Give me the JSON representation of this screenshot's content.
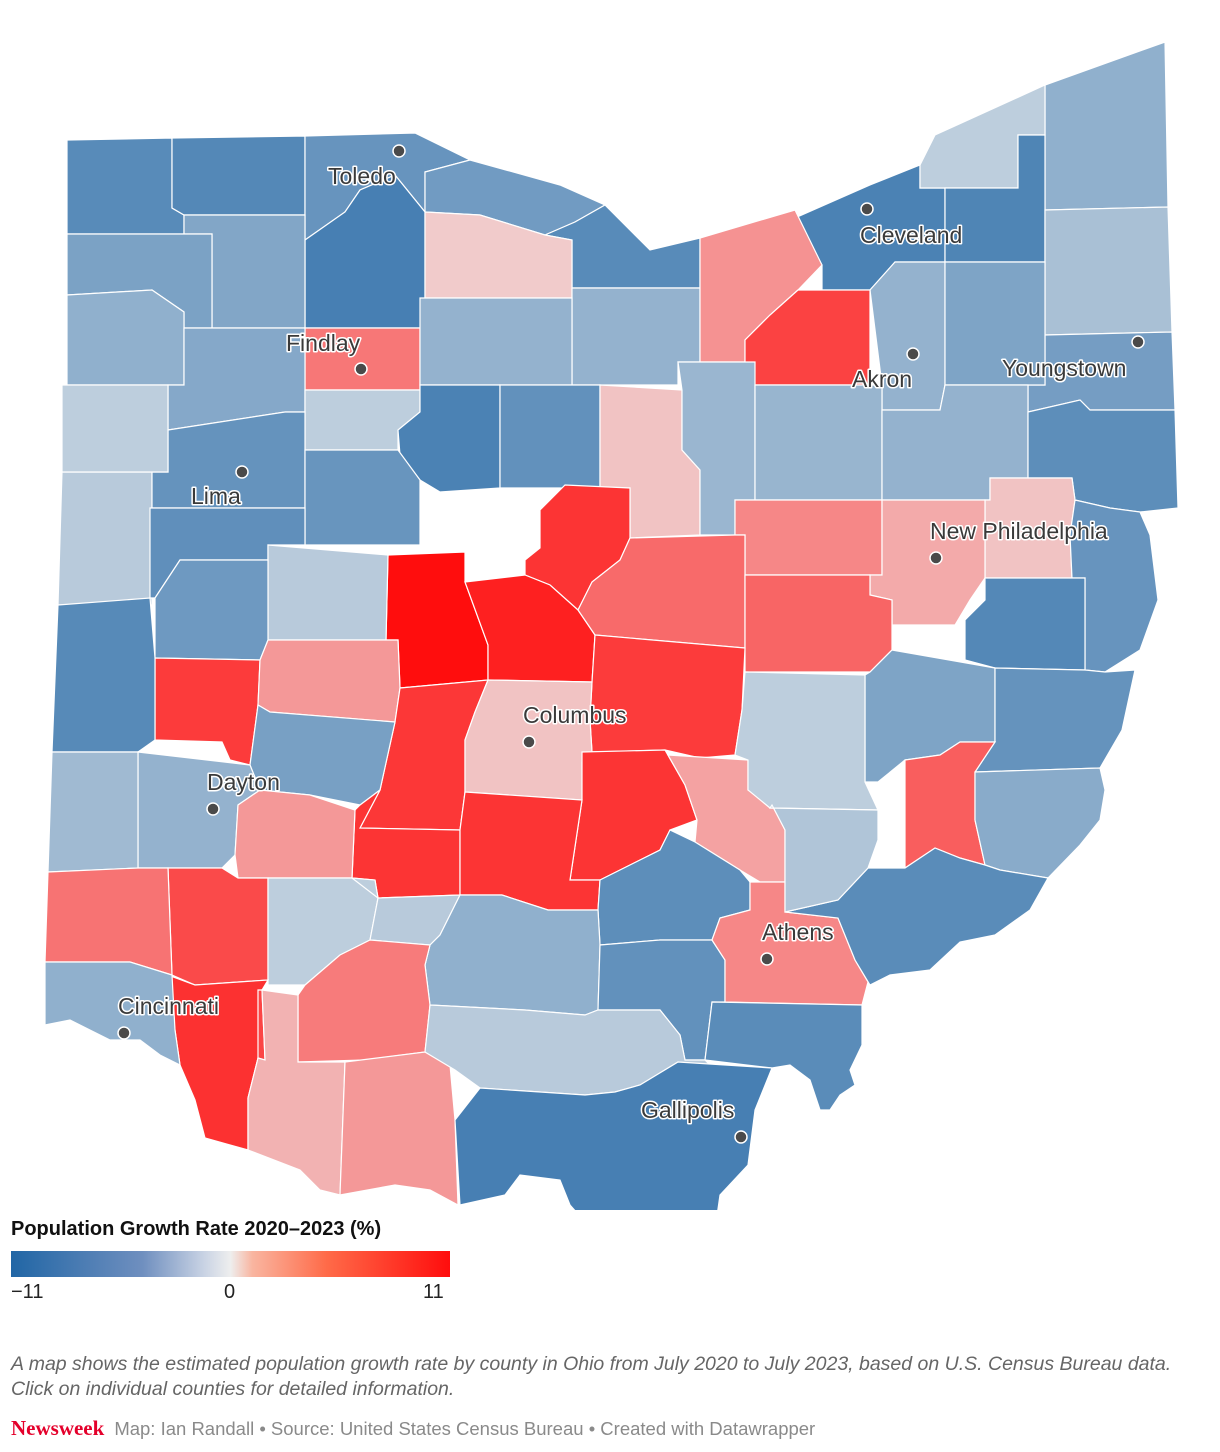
{
  "colors": {
    "negative_max": "#2166a5",
    "neutral": "#eeeeee",
    "positive_max": "#ff0d0d"
  },
  "legend": {
    "title": "Population Growth Rate 2020–2023 (%)",
    "min_label": "−11",
    "mid_label": "0",
    "max_label": "11",
    "min_value": -11,
    "max_value": 11
  },
  "cities": [
    {
      "name": "Toledo"
    },
    {
      "name": "Cleveland"
    },
    {
      "name": "Findlay"
    },
    {
      "name": "Akron"
    },
    {
      "name": "Youngstown"
    },
    {
      "name": "Lima"
    },
    {
      "name": "New Philadelphia"
    },
    {
      "name": "Columbus"
    },
    {
      "name": "Dayton"
    },
    {
      "name": "Athens"
    },
    {
      "name": "Cincinnati"
    },
    {
      "name": "Gallipolis"
    }
  ],
  "counties": [
    {
      "id": "c0",
      "rate": -6.5
    },
    {
      "id": "c1",
      "rate": -6.8
    },
    {
      "id": "c2",
      "rate": -5.5
    },
    {
      "id": "c3",
      "rate": -4.8
    },
    {
      "id": "c4",
      "rate": -6.5
    },
    {
      "id": "c5",
      "rate": -7.5
    },
    {
      "id": "c6",
      "rate": -3.0
    },
    {
      "id": "c7",
      "rate": -1.0
    },
    {
      "id": "c8",
      "rate": -7.2
    },
    {
      "id": "c9",
      "rate": -7.8
    },
    {
      "id": "c10",
      "rate": -3.8
    },
    {
      "id": "c11",
      "rate": -4.2
    },
    {
      "id": "c12",
      "rate": 0.5
    },
    {
      "id": "c13",
      "rate": -2.8
    },
    {
      "id": "c14",
      "rate": 2.5
    },
    {
      "id": "c15",
      "rate": -1.8
    },
    {
      "id": "c16",
      "rate": -4.6
    },
    {
      "id": "c17",
      "rate": -2.8
    },
    {
      "id": "c18",
      "rate": 7.0
    },
    {
      "id": "c19",
      "rate": -4.0
    },
    {
      "id": "c20",
      "rate": 3.8
    },
    {
      "id": "c21",
      "rate": -3.0
    },
    {
      "id": "c22",
      "rate": -3.6
    },
    {
      "id": "c23",
      "rate": -2.8
    },
    {
      "id": "c24",
      "rate": -1.0
    },
    {
      "id": "c25",
      "rate": -7.5
    },
    {
      "id": "c26",
      "rate": -5.8
    },
    {
      "id": "c27",
      "rate": 0.7
    },
    {
      "id": "c28",
      "rate": -2.5
    },
    {
      "id": "c29",
      "rate": -2.6
    },
    {
      "id": "c30",
      "rate": -2.8
    },
    {
      "id": "c31",
      "rate": -6.2
    },
    {
      "id": "c32",
      "rate": -1.2
    },
    {
      "id": "c33",
      "rate": -5.6
    },
    {
      "id": "c34",
      "rate": -1.0
    },
    {
      "id": "c35",
      "rate": -5.4
    },
    {
      "id": "c36",
      "rate": 8.0
    },
    {
      "id": "c37",
      "rate": 0.7
    },
    {
      "id": "c38",
      "rate": 3.0
    },
    {
      "id": "c39",
      "rate": 1.5
    },
    {
      "id": "c40",
      "rate": -5.5
    },
    {
      "id": "c41",
      "rate": -6.0
    },
    {
      "id": "c42",
      "rate": 11.0
    },
    {
      "id": "c43",
      "rate": 9.5
    },
    {
      "id": "c44",
      "rate": -1.2
    },
    {
      "id": "c45",
      "rate": 4.5
    },
    {
      "id": "c46",
      "rate": 4.8
    },
    {
      "id": "c47",
      "rate": -6.8
    },
    {
      "id": "c48",
      "rate": -5.0
    },
    {
      "id": "c49",
      "rate": 7.5
    },
    {
      "id": "c50",
      "rate": 2.2
    },
    {
      "id": "c51",
      "rate": 7.5
    },
    {
      "id": "c52",
      "rate": -6.6
    },
    {
      "id": "c53",
      "rate": -4.0
    },
    {
      "id": "c54",
      "rate": 7.8
    },
    {
      "id": "c55",
      "rate": 0.7
    },
    {
      "id": "c56",
      "rate": 8.0
    },
    {
      "id": "c57",
      "rate": 1.8
    },
    {
      "id": "c58",
      "rate": -1.0
    },
    {
      "id": "c59",
      "rate": -4.4
    },
    {
      "id": "c60",
      "rate": -5.6
    },
    {
      "id": "c61",
      "rate": -2.8
    },
    {
      "id": "c62",
      "rate": 5.2
    },
    {
      "id": "c63",
      "rate": -2.2
    },
    {
      "id": "c64",
      "rate": 8.0
    },
    {
      "id": "c65",
      "rate": 8.0
    },
    {
      "id": "c66",
      "rate": 2.2
    },
    {
      "id": "c67",
      "rate": -3.4
    },
    {
      "id": "c68",
      "rate": 6.5
    },
    {
      "id": "c69",
      "rate": -6.2
    },
    {
      "id": "c70",
      "rate": 4.0
    },
    {
      "id": "c71",
      "rate": -1.0
    },
    {
      "id": "c72",
      "rate": 8.2
    },
    {
      "id": "c73",
      "rate": -1.2
    },
    {
      "id": "c74",
      "rate": -3.0
    },
    {
      "id": "c75",
      "rate": -5.8
    },
    {
      "id": "c76",
      "rate": 3.0
    },
    {
      "id": "c77",
      "rate": -6.4
    },
    {
      "id": "c78",
      "rate": -1.5
    },
    {
      "id": "c79",
      "rate": 3.6
    },
    {
      "id": "c80",
      "rate": 6.8
    },
    {
      "id": "c81",
      "rate": 1.2
    },
    {
      "id": "c82",
      "rate": 2.2
    },
    {
      "id": "c83",
      "rate": -6.4
    },
    {
      "id": "c84",
      "rate": -3.0
    },
    {
      "id": "c85",
      "rate": -1.2
    },
    {
      "id": "c86",
      "rate": -7.8
    }
  ],
  "caption": "A map shows the estimated population growth rate by county in Ohio from July 2020 to July 2023, based on U.S. Census Bureau data. Click on individual counties for detailed information.",
  "footer": {
    "brand": "Newsweek",
    "credits": "Map: Ian Randall • Source: United States Census Bureau • Created with Datawrapper"
  }
}
